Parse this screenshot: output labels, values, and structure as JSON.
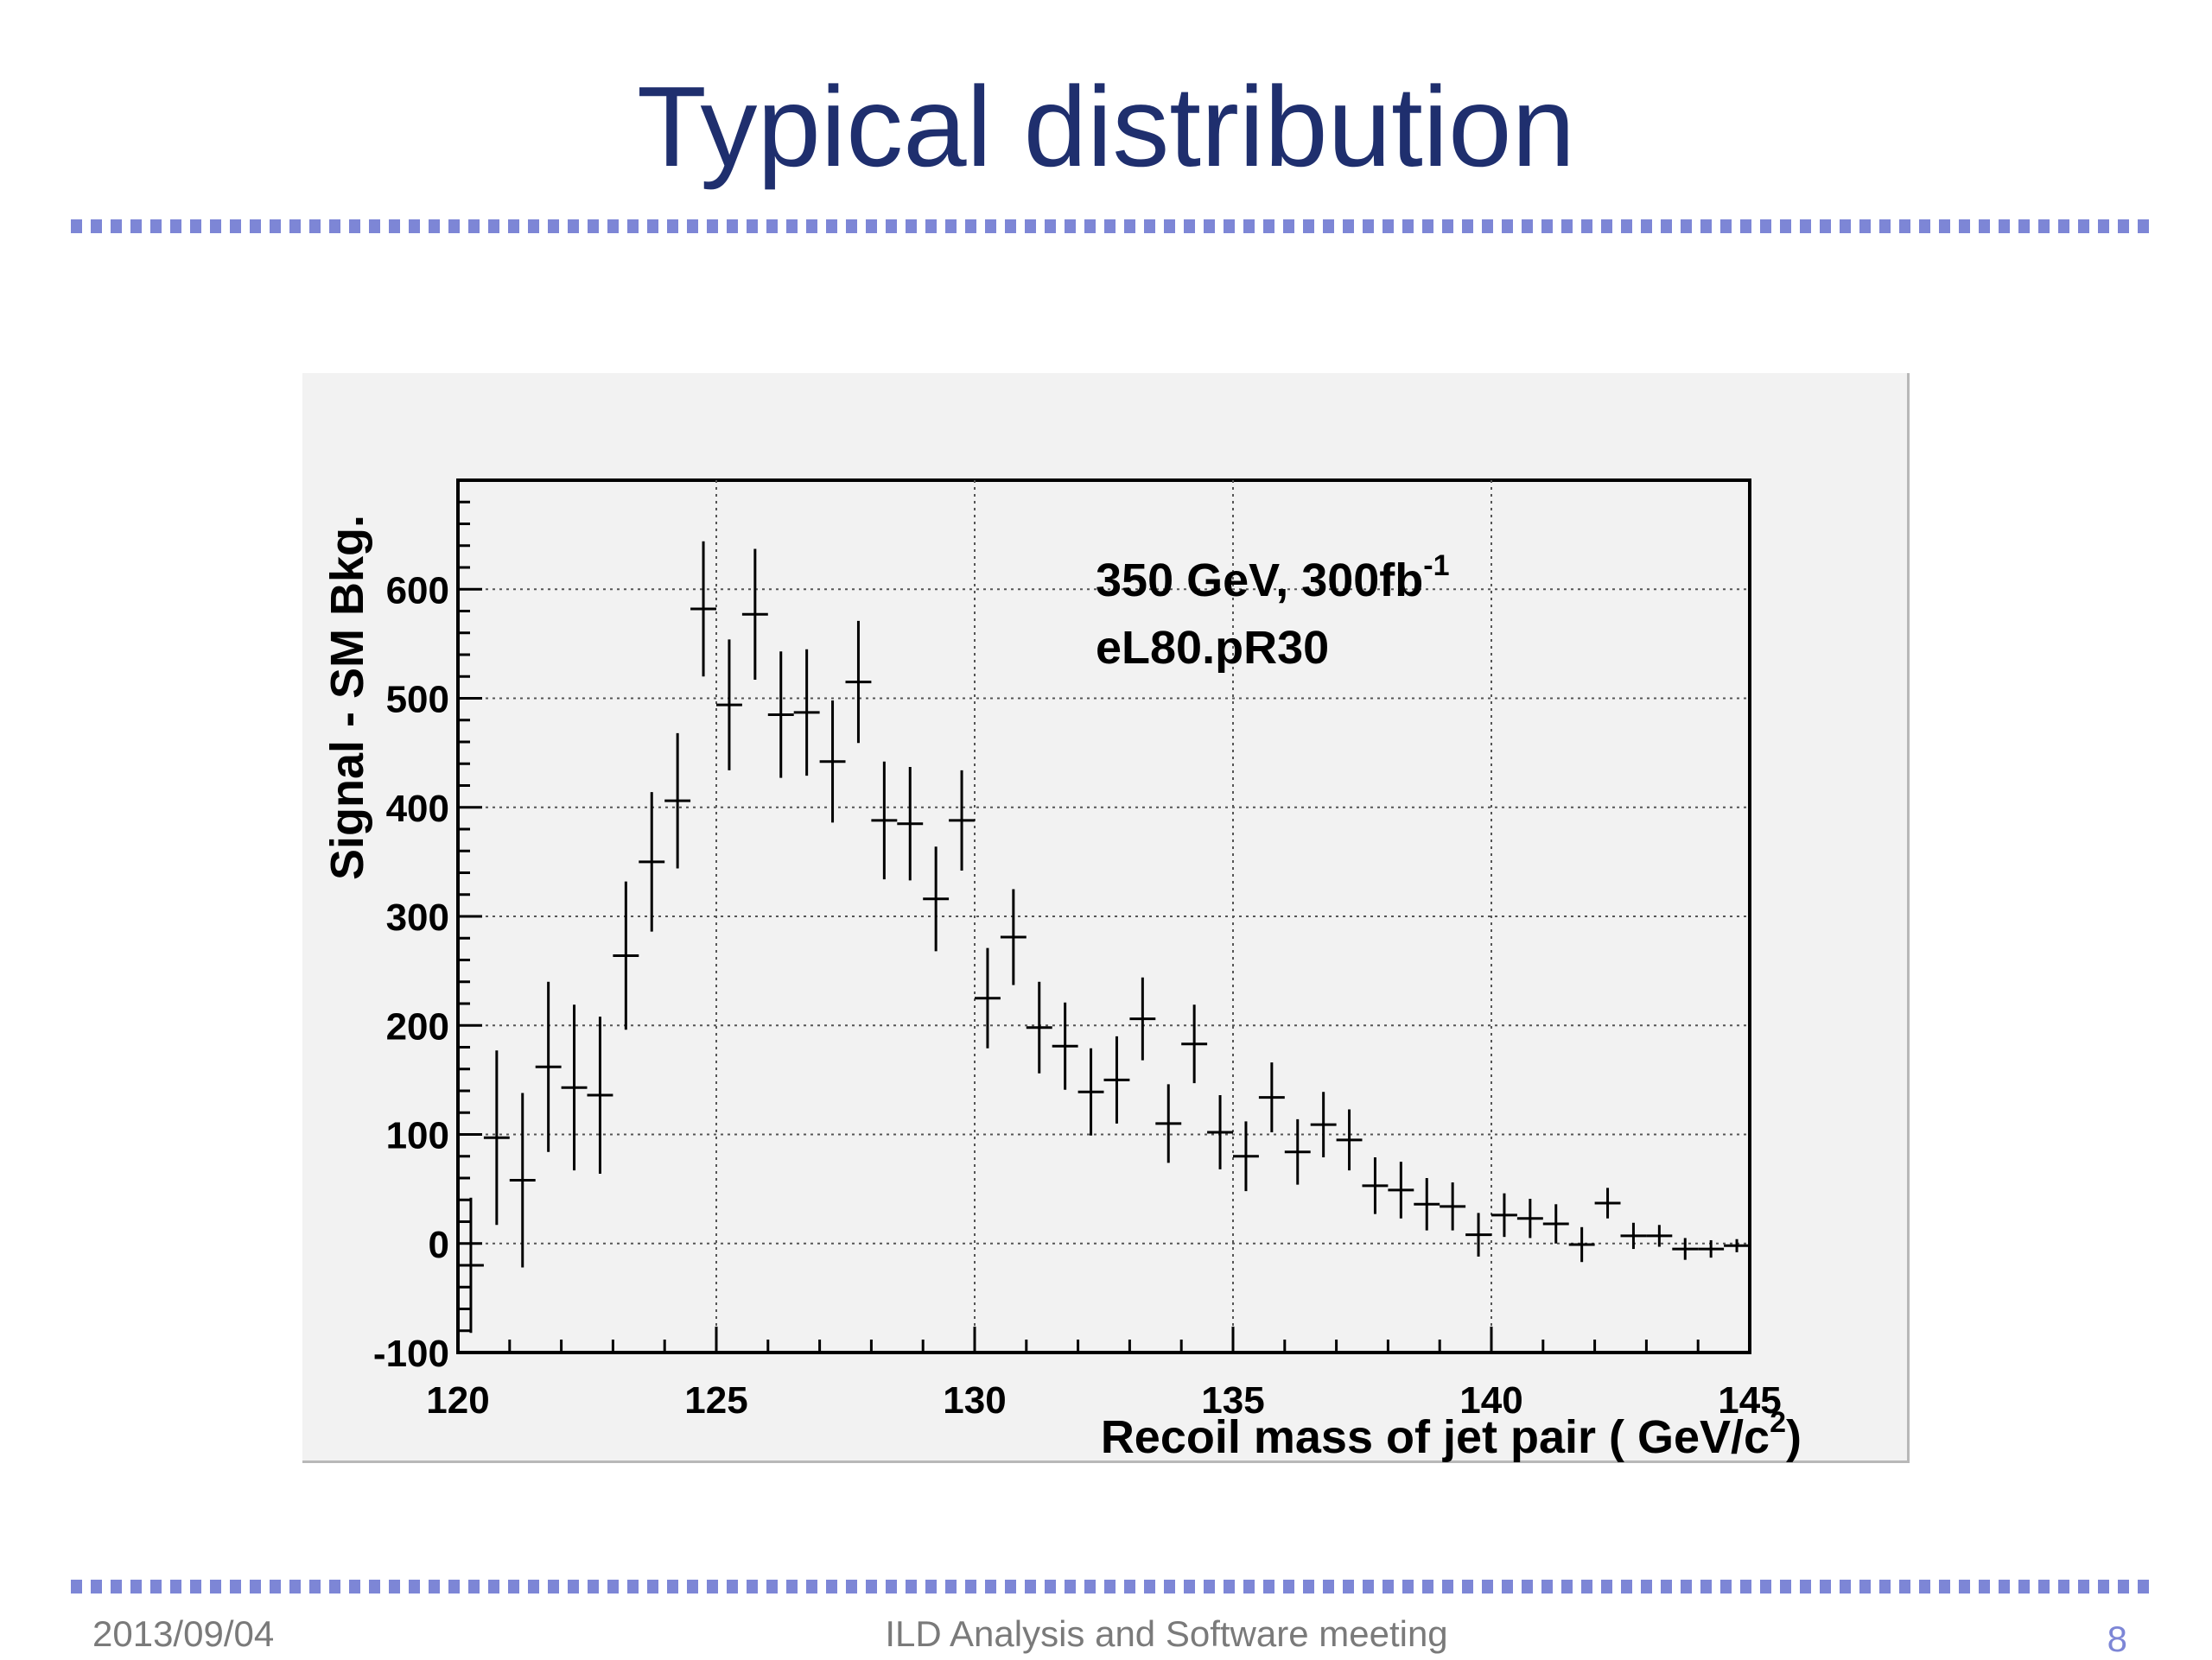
{
  "slide": {
    "title": "Typical distribution",
    "footer_date": "2013/09/04",
    "footer_meeting": "ILD Analysis and Software meeting",
    "page_number": "8"
  },
  "chart_data": {
    "type": "scatter",
    "style": "histogram points with error bars",
    "xlabel": "Recoil mass of jet pair ( GeV/c",
    "xlabel_sup": "2",
    "xlabel_close": ")",
    "ylabel": "Signal - SM Bkg.",
    "xlim": [
      120,
      145
    ],
    "ylim": [
      -100,
      700
    ],
    "x_ticks": [
      120,
      125,
      130,
      135,
      140,
      145
    ],
    "y_ticks": [
      -100,
      0,
      100,
      200,
      300,
      400,
      500,
      600
    ],
    "grid": true,
    "bin_width": 0.5,
    "annotations": [
      {
        "text": "350 GeV, 300fb",
        "sup": "-1"
      },
      {
        "text": "eL80.pR30"
      }
    ],
    "series": [
      {
        "x": [
          120.25,
          120.75,
          121.25,
          121.75,
          122.25,
          122.75,
          123.25,
          123.75,
          124.25,
          124.75,
          125.25,
          125.75,
          126.25,
          126.75,
          127.25,
          127.75,
          128.25,
          128.75,
          129.25,
          129.75,
          130.25,
          130.75,
          131.25,
          131.75,
          132.25,
          132.75,
          133.25,
          133.75,
          134.25,
          134.75,
          135.25,
          135.75,
          136.25,
          136.75,
          137.25,
          137.75,
          138.25,
          138.75,
          139.25,
          139.75,
          140.25,
          140.75,
          141.25,
          141.75,
          142.25,
          142.75,
          143.25,
          143.75,
          144.25,
          144.75
        ],
        "y": [
          -20,
          97,
          58,
          162,
          143,
          136,
          264,
          350,
          406,
          582,
          494,
          577,
          485,
          487,
          442,
          515,
          388,
          385,
          316,
          388,
          225,
          281,
          198,
          181,
          139,
          150,
          206,
          110,
          183,
          102,
          80,
          134,
          84,
          109,
          95,
          53,
          49,
          36,
          34,
          8,
          26,
          23,
          18,
          -1,
          37,
          7,
          7,
          -5,
          -5,
          -2
        ],
        "yerr": [
          62,
          80,
          80,
          78,
          76,
          72,
          68,
          64,
          62,
          62,
          60,
          60,
          58,
          58,
          56,
          56,
          54,
          52,
          48,
          46,
          46,
          44,
          42,
          40,
          40,
          40,
          38,
          36,
          36,
          34,
          32,
          32,
          30,
          30,
          28,
          26,
          26,
          24,
          22,
          20,
          20,
          18,
          18,
          16,
          14,
          12,
          10,
          10,
          8,
          6
        ]
      }
    ]
  }
}
